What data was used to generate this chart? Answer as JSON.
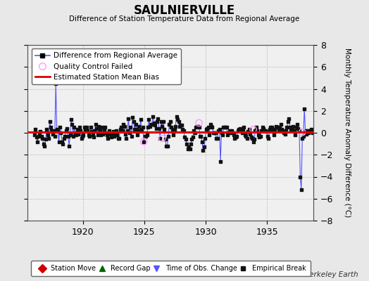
{
  "title": "SAULNIERVILLE",
  "subtitle": "Difference of Station Temperature Data from Regional Average",
  "ylabel": "Monthly Temperature Anomaly Difference (°C)",
  "bg_color": "#e8e8e8",
  "plot_bg_color": "#f0f0f0",
  "xlim": [
    1915.5,
    1938.8
  ],
  "ylim": [
    -8,
    8
  ],
  "yticks": [
    -8,
    -6,
    -4,
    -2,
    0,
    2,
    4,
    6,
    8
  ],
  "xticks": [
    1920,
    1925,
    1930,
    1935
  ],
  "bias_value": 0.05,
  "mean_bias_color": "#dd0000",
  "line_color": "#5555ff",
  "marker_color": "#111111",
  "qc_fail_color": "#ff99ff",
  "legend1_items": [
    "Difference from Regional Average",
    "Quality Control Failed",
    "Estimated Station Mean Bias"
  ],
  "legend2_items": [
    "Station Move",
    "Record Gap",
    "Time of Obs. Change",
    "Empirical Break"
  ],
  "watermark": "Berkeley Earth",
  "time_series": [
    1916.042,
    1916.125,
    1916.208,
    1916.292,
    1916.375,
    1916.458,
    1916.542,
    1916.625,
    1916.708,
    1916.792,
    1916.875,
    1916.958,
    1917.042,
    1917.125,
    1917.208,
    1917.292,
    1917.375,
    1917.458,
    1917.542,
    1917.625,
    1917.708,
    1917.792,
    1917.875,
    1917.958,
    1918.042,
    1918.125,
    1918.208,
    1918.292,
    1918.375,
    1918.458,
    1918.542,
    1918.625,
    1918.708,
    1918.792,
    1918.875,
    1918.958,
    1919.042,
    1919.125,
    1919.208,
    1919.292,
    1919.375,
    1919.458,
    1919.542,
    1919.625,
    1919.708,
    1919.792,
    1919.875,
    1919.958,
    1920.042,
    1920.125,
    1920.208,
    1920.292,
    1920.375,
    1920.458,
    1920.542,
    1920.625,
    1920.708,
    1920.792,
    1920.875,
    1920.958,
    1921.042,
    1921.125,
    1921.208,
    1921.292,
    1921.375,
    1921.458,
    1921.542,
    1921.625,
    1921.708,
    1921.792,
    1921.875,
    1921.958,
    1922.042,
    1922.125,
    1922.208,
    1922.292,
    1922.375,
    1922.458,
    1922.542,
    1922.625,
    1922.708,
    1922.792,
    1922.875,
    1922.958,
    1923.042,
    1923.125,
    1923.208,
    1923.292,
    1923.375,
    1923.458,
    1923.542,
    1923.625,
    1923.708,
    1923.792,
    1923.875,
    1923.958,
    1924.042,
    1924.125,
    1924.208,
    1924.292,
    1924.375,
    1924.458,
    1924.542,
    1924.625,
    1924.708,
    1924.792,
    1924.875,
    1924.958,
    1925.042,
    1925.125,
    1925.208,
    1925.292,
    1925.375,
    1925.458,
    1925.542,
    1925.625,
    1925.708,
    1925.792,
    1925.875,
    1925.958,
    1926.042,
    1926.125,
    1926.208,
    1926.292,
    1926.375,
    1926.458,
    1926.542,
    1926.625,
    1926.708,
    1926.792,
    1926.875,
    1926.958,
    1927.042,
    1927.125,
    1927.208,
    1927.292,
    1927.375,
    1927.458,
    1927.542,
    1927.625,
    1927.708,
    1927.792,
    1927.875,
    1927.958,
    1928.042,
    1928.125,
    1928.208,
    1928.292,
    1928.375,
    1928.458,
    1928.542,
    1928.625,
    1928.708,
    1928.792,
    1928.875,
    1928.958,
    1929.042,
    1929.125,
    1929.208,
    1929.292,
    1929.375,
    1929.458,
    1929.542,
    1929.625,
    1929.708,
    1929.792,
    1929.875,
    1929.958,
    1930.042,
    1930.125,
    1930.208,
    1930.292,
    1930.375,
    1930.458,
    1930.542,
    1930.625,
    1930.708,
    1930.792,
    1930.875,
    1930.958,
    1931.042,
    1931.125,
    1931.208,
    1931.292,
    1931.375,
    1931.458,
    1931.542,
    1931.625,
    1931.708,
    1931.792,
    1931.875,
    1931.958,
    1932.042,
    1932.125,
    1932.208,
    1932.292,
    1932.375,
    1932.458,
    1932.542,
    1932.625,
    1932.708,
    1932.792,
    1932.875,
    1932.958,
    1933.042,
    1933.125,
    1933.208,
    1933.292,
    1933.375,
    1933.458,
    1933.542,
    1933.625,
    1933.708,
    1933.792,
    1933.875,
    1933.958,
    1934.042,
    1934.125,
    1934.208,
    1934.292,
    1934.375,
    1934.458,
    1934.542,
    1934.625,
    1934.708,
    1934.792,
    1934.875,
    1934.958,
    1935.042,
    1935.125,
    1935.208,
    1935.292,
    1935.375,
    1935.458,
    1935.542,
    1935.625,
    1935.708,
    1935.792,
    1935.875,
    1935.958,
    1936.042,
    1936.125,
    1936.208,
    1936.292,
    1936.375,
    1936.458,
    1936.542,
    1936.625,
    1936.708,
    1936.792,
    1936.875,
    1936.958,
    1937.042,
    1937.125,
    1937.208,
    1937.292,
    1937.375,
    1937.458,
    1937.542,
    1937.625,
    1937.708,
    1937.792,
    1937.875,
    1937.958,
    1938.042,
    1938.125,
    1938.208,
    1938.292,
    1938.375,
    1938.458,
    1938.542,
    1938.625,
    1938.708
  ],
  "values": [
    -0.2,
    0.3,
    -0.4,
    -0.8,
    -0.3,
    -0.2,
    0.1,
    -0.3,
    -0.5,
    -1.0,
    -1.2,
    -0.6,
    0.3,
    -0.2,
    -0.5,
    1.0,
    0.5,
    0.2,
    -0.1,
    0.2,
    -0.3,
    4.5,
    0.3,
    0.1,
    -0.8,
    0.5,
    0.0,
    -0.8,
    -1.0,
    -0.5,
    -0.3,
    0.2,
    0.4,
    -0.3,
    -1.2,
    -0.2,
    1.2,
    0.8,
    -0.3,
    0.5,
    0.0,
    -0.2,
    0.3,
    -0.1,
    0.5,
    0.2,
    -0.5,
    -0.3,
    -0.2,
    0.5,
    0.3,
    0.5,
    0.2,
    -0.2,
    -0.3,
    0.5,
    0.1,
    -0.2,
    -0.4,
    0.2,
    0.8,
    0.4,
    -0.2,
    0.6,
    0.3,
    -0.2,
    0.5,
    -0.1,
    0.2,
    0.5,
    0.0,
    -0.2,
    -0.5,
    0.2,
    -0.1,
    -0.4,
    -0.2,
    0.1,
    -0.3,
    0.0,
    0.2,
    -0.2,
    -0.5,
    -0.5,
    0.3,
    0.5,
    0.2,
    0.8,
    0.6,
    -0.1,
    -0.5,
    0.2,
    1.3,
    0.0,
    0.5,
    -0.3,
    1.4,
    1.0,
    0.3,
    0.8,
    0.3,
    -0.2,
    0.6,
    0.2,
    1.2,
    0.3,
    0.5,
    -0.8,
    -0.3,
    -0.3,
    -0.2,
    0.5,
    1.2,
    0.6,
    0.8,
    0.8,
    1.5,
    0.9,
    0.7,
    0.4,
    1.0,
    1.3,
    0.4,
    -0.5,
    1.0,
    0.6,
    1.0,
    0.3,
    -0.6,
    -1.2,
    -1.2,
    -0.3,
    0.8,
    1.0,
    0.5,
    0.2,
    -0.2,
    0.3,
    0.6,
    1.5,
    1.2,
    1.0,
    0.6,
    0.7,
    0.7,
    0.3,
    0.2,
    -0.4,
    -0.6,
    -1.0,
    -1.5,
    -1.3,
    -1.5,
    -1.0,
    -0.6,
    -0.4,
    0.2,
    0.0,
    0.5,
    0.6,
    0.6,
    0.5,
    -0.3,
    -0.3,
    -0.8,
    -1.6,
    -1.3,
    -0.5,
    0.3,
    0.4,
    0.5,
    -0.2,
    0.8,
    0.6,
    0.5,
    0.0,
    0.0,
    0.0,
    -0.5,
    -0.5,
    0.2,
    0.3,
    -2.6,
    0.0,
    -0.2,
    0.5,
    0.5,
    0.5,
    0.5,
    -0.2,
    0.0,
    0.2,
    0.0,
    0.2,
    0.0,
    -0.2,
    -0.5,
    -0.4,
    -0.3,
    0.2,
    0.3,
    0.4,
    0.2,
    0.0,
    0.3,
    0.5,
    -0.2,
    -0.3,
    -0.5,
    0.1,
    0.3,
    -0.1,
    -0.4,
    -0.5,
    -0.8,
    -0.6,
    0.2,
    0.5,
    0.2,
    -0.2,
    -0.4,
    -0.3,
    0.2,
    0.5,
    0.4,
    0.2,
    0.2,
    0.1,
    -0.3,
    -0.5,
    0.3,
    0.5,
    0.5,
    0.3,
    -0.2,
    0.3,
    0.6,
    0.5,
    0.5,
    0.3,
    0.5,
    0.8,
    0.3,
    0.2,
    0.0,
    -0.1,
    0.2,
    0.5,
    1.0,
    1.3,
    0.5,
    0.3,
    0.5,
    0.6,
    0.2,
    -0.2,
    0.5,
    0.8,
    0.4,
    0.2,
    -4.0,
    -5.2,
    -0.5,
    -0.3,
    2.2,
    0.2,
    -0.1,
    0.2,
    0.0,
    0.2,
    0.1,
    0.3,
    0.0
  ],
  "qc_fail_times": [
    1924.958,
    1926.458,
    1929.458,
    1933.875,
    1937.875
  ],
  "qc_fail_values": [
    -0.8,
    -0.5,
    0.9,
    0.3,
    0.05
  ]
}
